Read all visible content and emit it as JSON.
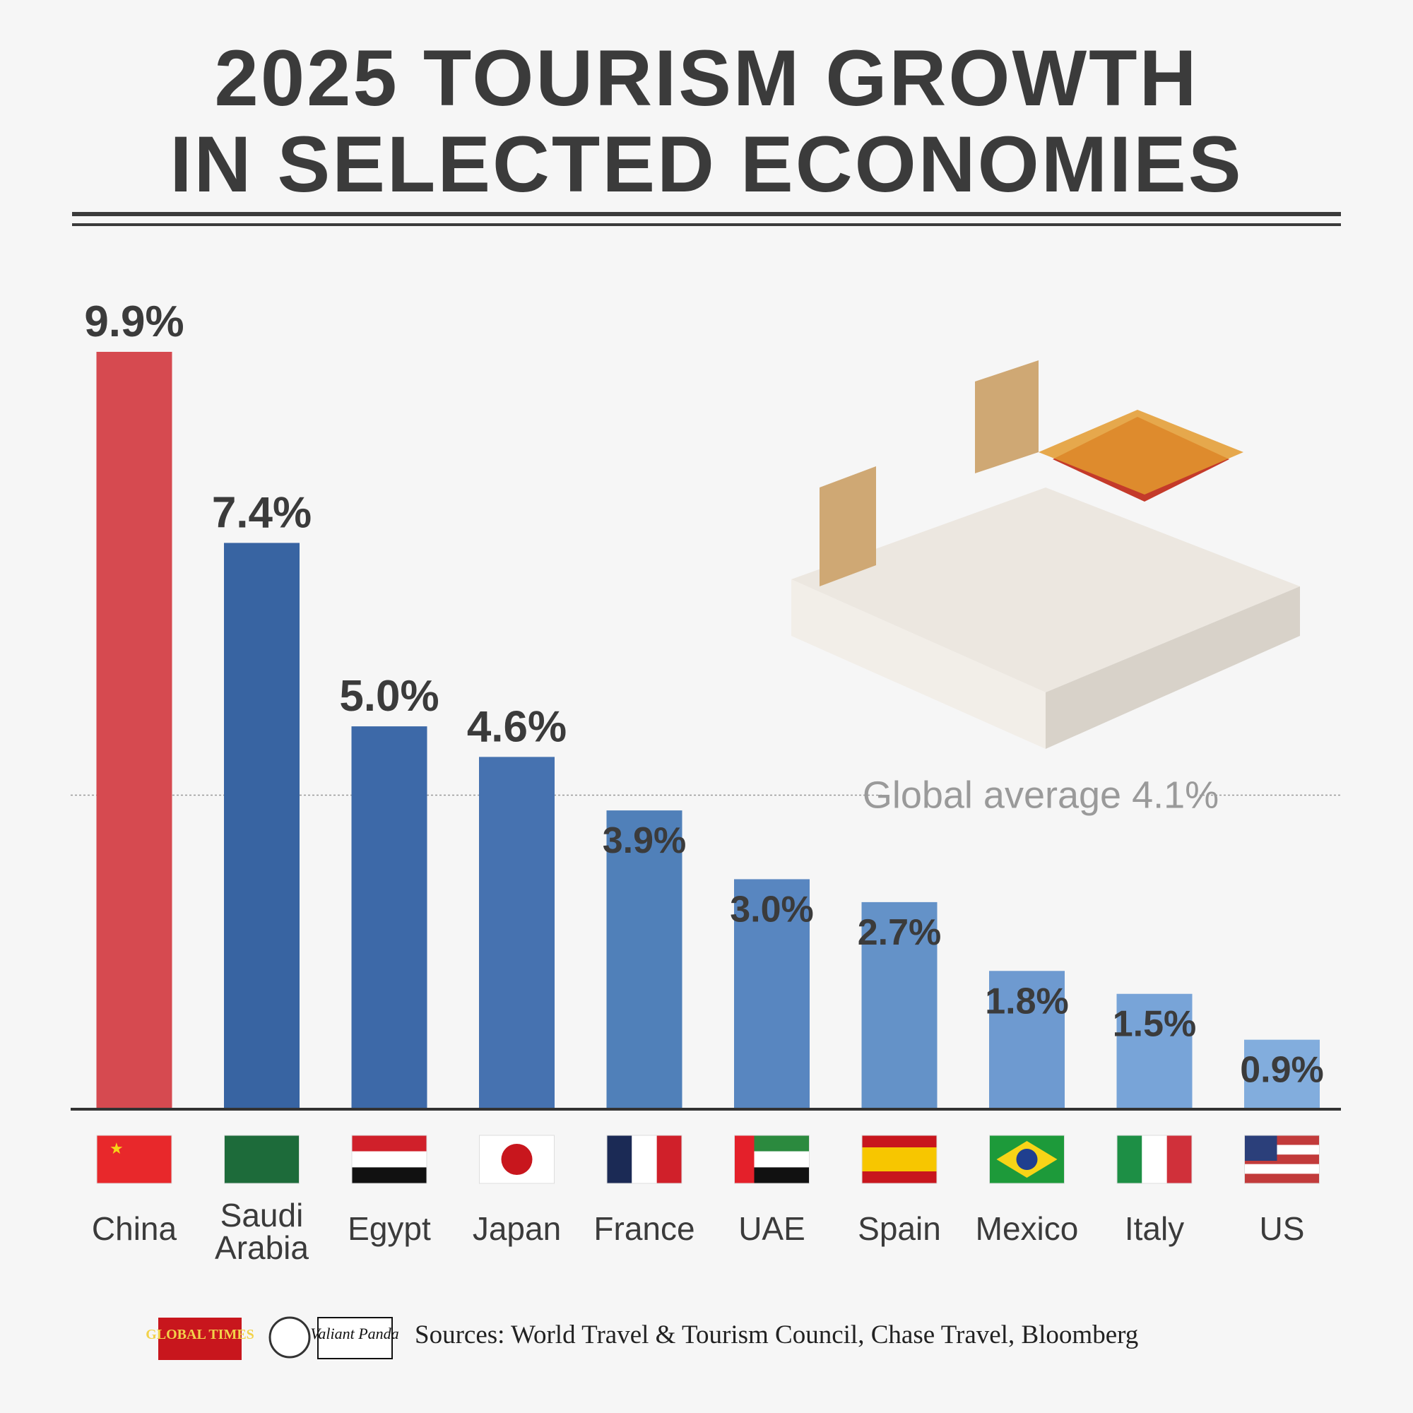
{
  "chart_data": {
    "type": "bar",
    "title": "2025 TOURISM GROWTH\nIN SELECTED ECONOMIES",
    "categories": [
      "China",
      "Saudi Arabia",
      "Egypt",
      "Japan",
      "France",
      "UAE",
      "Spain",
      "Mexico",
      "Italy",
      "US"
    ],
    "values": [
      9.9,
      7.4,
      5.0,
      4.6,
      3.9,
      3.0,
      2.7,
      1.8,
      1.5,
      0.9
    ],
    "value_labels": [
      "9.9%",
      "7.4%",
      "5.0%",
      "4.6%",
      "3.9%",
      "3.0%",
      "2.7%",
      "1.8%",
      "1.5%",
      "0.9%"
    ],
    "colors": [
      "#d64a50",
      "#3864a2",
      "#3d69a8",
      "#4672b0",
      "#5080b9",
      "#5886c0",
      "#6492c8",
      "#6e9ad0",
      "#78a4d8",
      "#82addd"
    ],
    "reference_line": {
      "value": 4.1,
      "label": "Global average 4.1%"
    },
    "source": "Sources: World Travel & Tourism Council, Chase Travel, Bloomberg",
    "logos": [
      "GLOBAL TIMES",
      "Valiant Panda"
    ]
  }
}
